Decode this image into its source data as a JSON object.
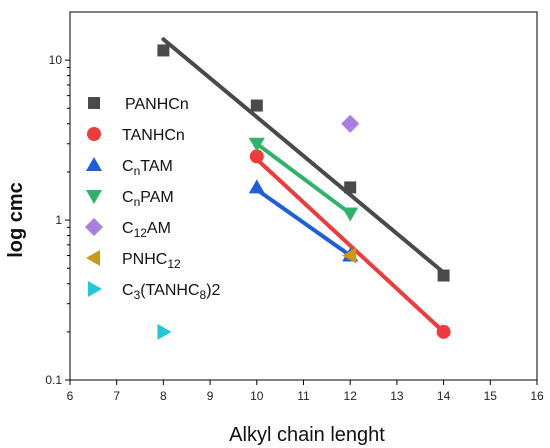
{
  "chart_data": {
    "type": "scatter",
    "title": "",
    "xlabel": "Alkyl chain lenght",
    "ylabel": "log cmc",
    "xlim": [
      6,
      16
    ],
    "ylim": [
      0.1,
      20
    ],
    "y_scale": "log",
    "x_ticks": [
      "6",
      "7",
      "8",
      "9",
      "10",
      "11",
      "12",
      "13",
      "14",
      "15",
      "16"
    ],
    "y_ticks": [
      {
        "value": 0.1,
        "label": "0.1"
      },
      {
        "value": 1,
        "label": "1"
      },
      {
        "value": 10,
        "label": "10"
      }
    ],
    "grid": false,
    "legend_position": "left",
    "series": [
      {
        "name": "PANHCn",
        "label_parts": [
          [
            "PANHCn",
            ""
          ]
        ],
        "marker": "square",
        "color": "#4a4a4a",
        "points": [
          [
            8,
            11.5
          ],
          [
            10,
            5.2
          ],
          [
            12,
            1.6
          ],
          [
            14,
            0.45
          ]
        ],
        "fit": [
          [
            8,
            13.5
          ],
          [
            14,
            0.47
          ]
        ]
      },
      {
        "name": "TANHCn",
        "label_parts": [
          [
            "TANHCn",
            ""
          ]
        ],
        "marker": "circle",
        "color": "#ee3b3b",
        "points": [
          [
            10,
            2.5
          ],
          [
            14,
            0.2
          ]
        ],
        "fit": [
          [
            10,
            2.4
          ],
          [
            14,
            0.2
          ]
        ]
      },
      {
        "name": "CnTAM",
        "label_parts": [
          [
            "C",
            ""
          ],
          [
            "n",
            "sub"
          ],
          [
            "TAM",
            ""
          ]
        ],
        "marker": "triangle-up",
        "color": "#1f5fd6",
        "points": [
          [
            10,
            1.6
          ],
          [
            12,
            0.6
          ]
        ],
        "fit": [
          [
            10,
            1.55
          ],
          [
            12,
            0.6
          ]
        ]
      },
      {
        "name": "CnPAM",
        "label_parts": [
          [
            "C",
            ""
          ],
          [
            "n",
            "sub"
          ],
          [
            "PAM",
            ""
          ]
        ],
        "marker": "triangle-down",
        "color": "#2fb36b",
        "points": [
          [
            10,
            3.0
          ],
          [
            12,
            1.1
          ]
        ],
        "fit": [
          [
            10,
            3.0
          ],
          [
            12,
            1.1
          ]
        ]
      },
      {
        "name": "C12AM",
        "label_parts": [
          [
            "C",
            ""
          ],
          [
            "12",
            "sub"
          ],
          [
            "AM",
            ""
          ]
        ],
        "marker": "diamond",
        "color": "#a97ee0",
        "points": [
          [
            12,
            4.0
          ]
        ]
      },
      {
        "name": "PNHC12",
        "label_parts": [
          [
            "PNHC",
            ""
          ],
          [
            "12",
            "sub"
          ]
        ],
        "marker": "triangle-left",
        "color": "#c99a16",
        "points": [
          [
            12,
            0.6
          ]
        ]
      },
      {
        "name": "C3(TANHC8)2",
        "label_parts": [
          [
            "C",
            ""
          ],
          [
            "3",
            "sub"
          ],
          [
            "(TANHC",
            ""
          ],
          [
            "8",
            "sub"
          ],
          [
            ")2",
            ""
          ]
        ],
        "marker": "triangle-right",
        "color": "#21c8d6",
        "points": [
          [
            8,
            0.2
          ]
        ]
      }
    ]
  }
}
